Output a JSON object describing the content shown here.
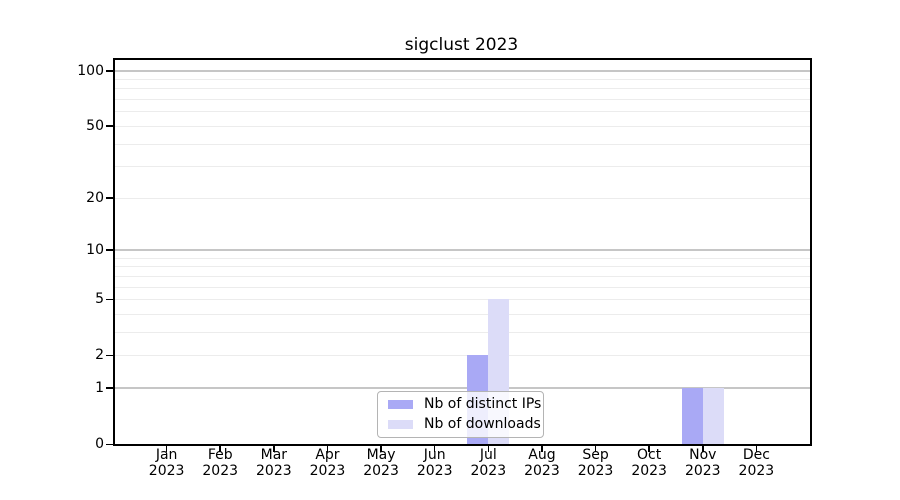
{
  "chart_data": {
    "type": "bar",
    "title": "sigclust 2023",
    "categories": [
      {
        "month": "Jan",
        "year": "2023"
      },
      {
        "month": "Feb",
        "year": "2023"
      },
      {
        "month": "Mar",
        "year": "2023"
      },
      {
        "month": "Apr",
        "year": "2023"
      },
      {
        "month": "May",
        "year": "2023"
      },
      {
        "month": "Jun",
        "year": "2023"
      },
      {
        "month": "Jul",
        "year": "2023"
      },
      {
        "month": "Aug",
        "year": "2023"
      },
      {
        "month": "Sep",
        "year": "2023"
      },
      {
        "month": "Oct",
        "year": "2023"
      },
      {
        "month": "Nov",
        "year": "2023"
      },
      {
        "month": "Dec",
        "year": "2023"
      }
    ],
    "series": [
      {
        "name": "Nb of distinct IPs",
        "color": "#a9a9f5",
        "values": [
          0,
          0,
          0,
          0,
          0,
          0,
          2,
          0,
          0,
          0,
          1,
          0
        ]
      },
      {
        "name": "Nb of downloads",
        "color": "#dcdcf8",
        "values": [
          0,
          0,
          0,
          0,
          0,
          0,
          5,
          0,
          0,
          0,
          1,
          0
        ]
      }
    ],
    "xlabel": "",
    "ylabel": "",
    "yscale": "log1p",
    "ylim": [
      0,
      112
    ],
    "yticks": [
      0,
      1,
      2,
      5,
      10,
      20,
      50,
      100
    ],
    "major_gridlines": [
      1,
      10,
      100
    ],
    "minor_gridlines": [
      2,
      3,
      4,
      5,
      6,
      7,
      8,
      9,
      20,
      30,
      40,
      50,
      60,
      70,
      80,
      90
    ],
    "grid": true,
    "legend_position": "lower center"
  }
}
